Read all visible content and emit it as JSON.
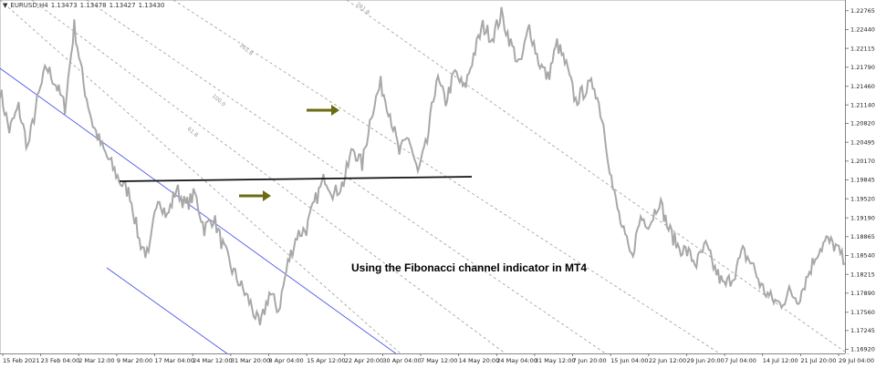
{
  "header": {
    "symbol_icon": "triangle-down-icon",
    "symbol": "EURUSD,H4",
    "open": "1.13473",
    "high": "1.13478",
    "low": "1.13427",
    "close": "1.13430"
  },
  "annotation": {
    "text": "Using the Fibonacci channel indicator in MT4"
  },
  "colors": {
    "price": "#a8a8a8",
    "channel": "#3b46e6",
    "fib": "#9a9a9a",
    "support": "#111111",
    "arrow": "#6b6b12"
  },
  "fib_levels": [
    "61.8",
    "100.0",
    "161.8",
    "261.8"
  ],
  "chart_data": {
    "type": "line",
    "title": "",
    "xlabel": "",
    "ylabel": "",
    "ylim": [
      1.1685,
      1.2295
    ],
    "x_ticks": [
      "15 Feb 2021",
      "23 Feb 04:00",
      "2 Mar 12:00",
      "9 Mar 20:00",
      "17 Mar 04:00",
      "24 Mar 12:00",
      "31 Mar 20:00",
      "8 Apr 04:00",
      "15 Apr 12:00",
      "22 Apr 20:00",
      "30 Apr 04:00",
      "7 May 12:00",
      "14 May 20:00",
      "24 May 04:00",
      "31 May 12:00",
      "7 Jun 20:00",
      "15 Jun 04:00",
      "22 Jun 12:00",
      "29 Jun 20:00",
      "7 Jul 04:00",
      "14 Jul 12:00",
      "21 Jul 20:00",
      "29 Jul 04:00"
    ],
    "y_ticks": [
      1.22765,
      1.2244,
      1.22115,
      1.2179,
      1.2146,
      1.2114,
      1.2082,
      1.20495,
      1.2017,
      1.19845,
      1.1952,
      1.1919,
      1.18865,
      1.1854,
      1.18215,
      1.1789,
      1.1756,
      1.17245,
      1.1692
    ],
    "y_tick_labels": [
      "1.22765",
      "1.22440",
      "1.22115",
      "1.21790",
      "1.21460",
      "1.21140",
      "1.20820",
      "1.20495",
      "1.20170",
      "1.19845",
      "1.19520",
      "1.19190",
      "1.18865",
      "1.18540",
      "1.18215",
      "1.17890",
      "1.17560",
      "1.17245",
      "1.16920"
    ],
    "series": [
      {
        "values": [
          1.214,
          1.207,
          1.211,
          1.204,
          1.212,
          1.218,
          1.215,
          1.211,
          1.225,
          1.215,
          1.208,
          1.204,
          1.201,
          1.198,
          1.196,
          1.188,
          1.185,
          1.196,
          1.192,
          1.197,
          1.194,
          1.196,
          1.19,
          1.192,
          1.187,
          1.183,
          1.18,
          1.177,
          1.173,
          1.179,
          1.176,
          1.184,
          1.189,
          1.19,
          1.195,
          1.199,
          1.196,
          1.198,
          1.204,
          1.201,
          1.21,
          1.215,
          1.21,
          1.203,
          1.206,
          1.1995,
          1.205,
          1.216,
          1.212,
          1.217,
          1.214,
          1.22,
          1.225,
          1.223,
          1.227,
          1.222,
          1.218,
          1.225,
          1.219,
          1.216,
          1.222,
          1.218,
          1.212,
          1.214,
          1.215,
          1.208,
          1.197,
          1.19,
          1.185,
          1.192,
          1.191,
          1.195,
          1.19,
          1.187,
          1.186,
          1.184,
          1.187,
          1.183,
          1.18,
          1.182,
          1.186,
          1.184,
          1.18,
          1.178,
          1.177,
          1.179,
          1.178,
          1.182,
          1.186,
          1.188,
          1.187,
          1.184
        ]
      }
    ]
  }
}
